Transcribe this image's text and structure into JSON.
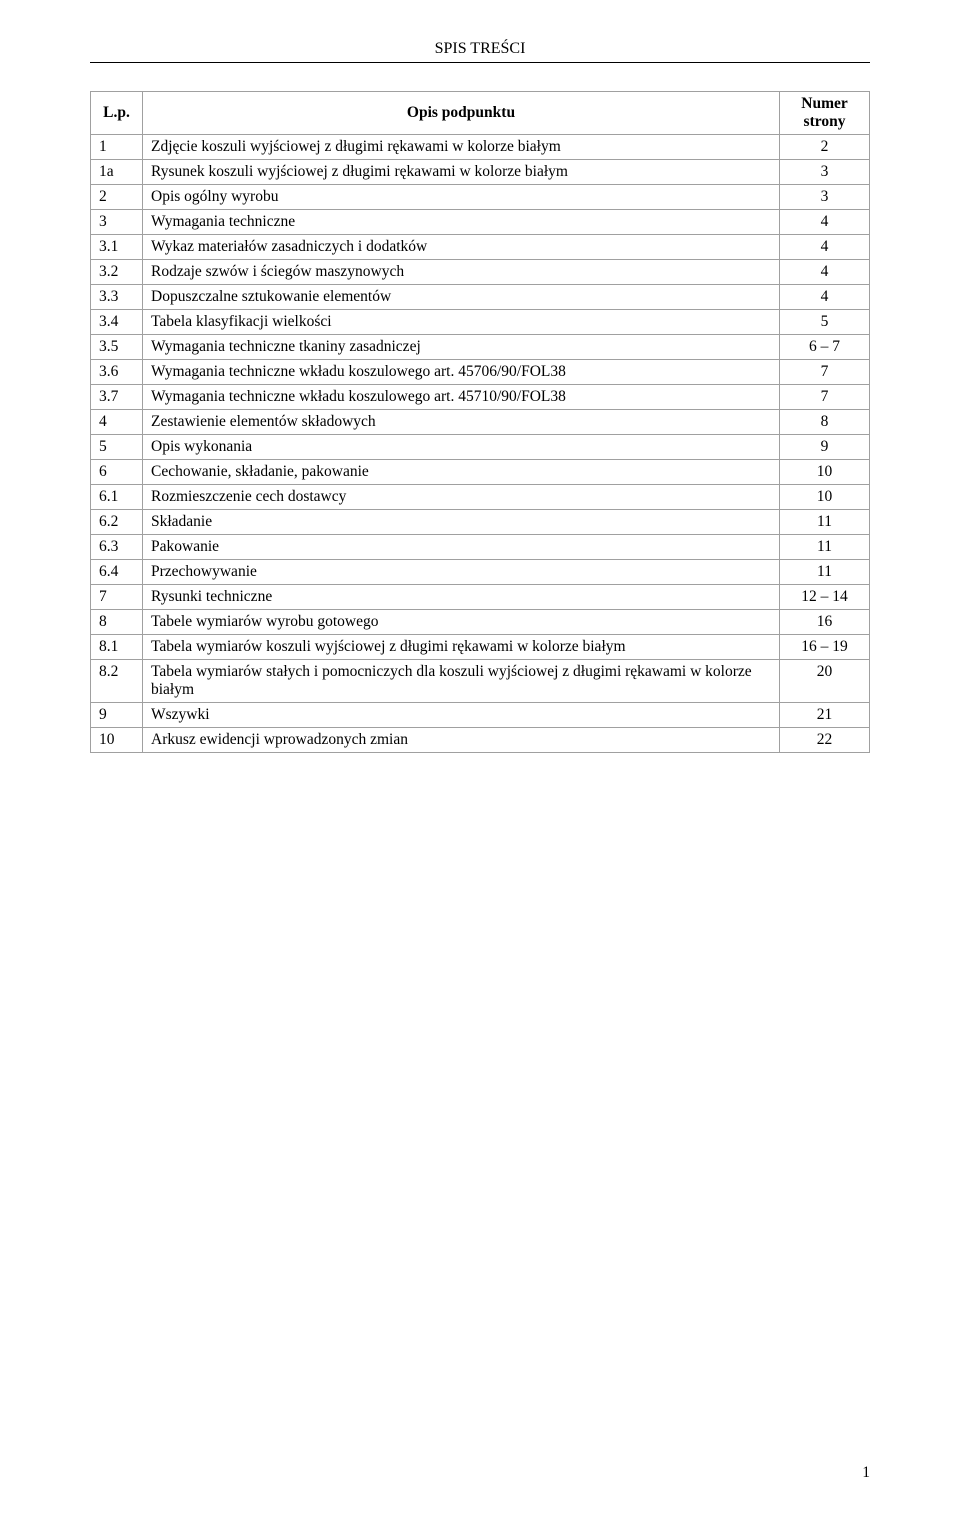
{
  "title": "SPIS TREŚCI",
  "header": {
    "lp_label": "L.p.",
    "desc_label": "Opis podpunktu",
    "page_label": "Numer strony"
  },
  "rows": [
    {
      "lp": "1",
      "desc": "Zdjęcie koszuli wyjściowej z długimi rękawami w kolorze białym",
      "page": "2"
    },
    {
      "lp": "1a",
      "desc": "Rysunek koszuli wyjściowej z długimi rękawami w kolorze białym",
      "page": "3"
    },
    {
      "lp": "2",
      "desc": "Opis ogólny wyrobu",
      "page": "3"
    },
    {
      "lp": "3",
      "desc": "Wymagania techniczne",
      "page": "4"
    },
    {
      "lp": "3.1",
      "desc": "Wykaz materiałów zasadniczych i dodatków",
      "page": "4"
    },
    {
      "lp": "3.2",
      "desc": "Rodzaje szwów i ściegów maszynowych",
      "page": "4"
    },
    {
      "lp": "3.3",
      "desc": "Dopuszczalne sztukowanie elementów",
      "page": "4"
    },
    {
      "lp": "3.4",
      "desc": "Tabela klasyfikacji wielkości",
      "page": "5"
    },
    {
      "lp": "3.5",
      "desc": "Wymagania techniczne tkaniny zasadniczej",
      "page": "6 – 7"
    },
    {
      "lp": "3.6",
      "desc": "Wymagania techniczne wkładu koszulowego art. 45706/90/FOL38",
      "page": "7"
    },
    {
      "lp": "3.7",
      "desc": "Wymagania techniczne wkładu koszulowego art. 45710/90/FOL38",
      "page": "7"
    },
    {
      "lp": "4",
      "desc": "Zestawienie elementów składowych",
      "page": "8"
    },
    {
      "lp": "5",
      "desc": "Opis wykonania",
      "page": "9"
    },
    {
      "lp": "6",
      "desc": "Cechowanie, składanie, pakowanie",
      "page": "10"
    },
    {
      "lp": "6.1",
      "desc": "Rozmieszczenie cech dostawcy",
      "page": "10"
    },
    {
      "lp": "6.2",
      "desc": "Składanie",
      "page": "11"
    },
    {
      "lp": "6.3",
      "desc": "Pakowanie",
      "page": "11"
    },
    {
      "lp": "6.4",
      "desc": "Przechowywanie",
      "page": "11"
    },
    {
      "lp": "7",
      "desc": "Rysunki techniczne",
      "page": "12 – 14"
    },
    {
      "lp": "8",
      "desc": "Tabele wymiarów wyrobu gotowego",
      "page": "16"
    },
    {
      "lp": "8.1",
      "desc": "Tabela wymiarów koszuli wyjściowej z długimi rękawami w kolorze białym",
      "page": "16 – 19"
    },
    {
      "lp": "8.2",
      "desc": "Tabela wymiarów stałych i pomocniczych dla koszuli wyjściowej z długimi rękawami w kolorze białym",
      "page": "20"
    },
    {
      "lp": "9",
      "desc": "Wszywki",
      "page": "21"
    },
    {
      "lp": "10",
      "desc": "Arkusz ewidencji wprowadzonych zmian",
      "page": "22"
    }
  ],
  "page_number": "1"
}
